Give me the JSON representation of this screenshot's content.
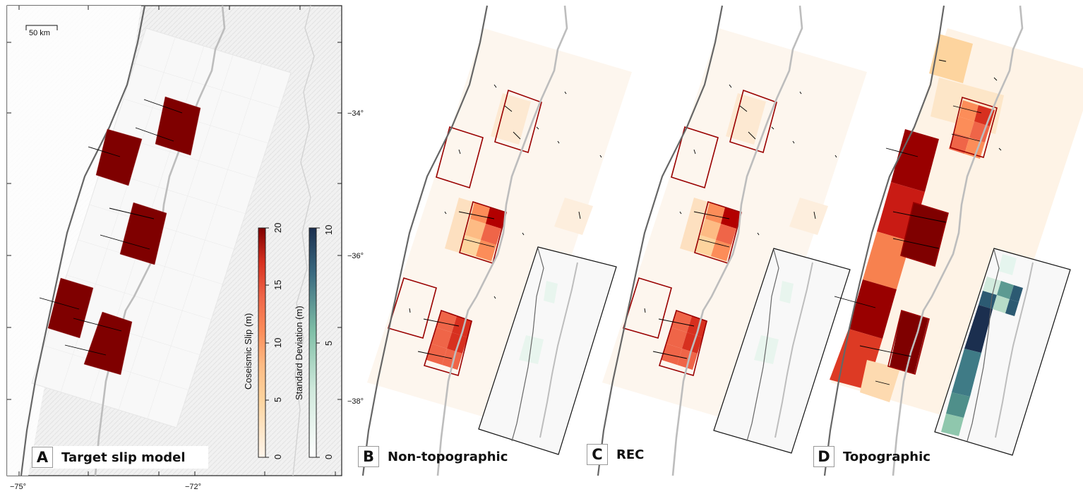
{
  "panels": [
    {
      "letter": "A",
      "title": "Target slip model"
    },
    {
      "letter": "B",
      "title": "Non-topographic"
    },
    {
      "letter": "C",
      "title": "REC"
    },
    {
      "letter": "D",
      "title": "Topographic"
    }
  ],
  "scale_bar": "50 km",
  "axes": {
    "x_ticks": [
      "−75°",
      "−72°"
    ],
    "y_ticks": [
      "−34°",
      "−36°",
      "−38°"
    ]
  },
  "colorbars": [
    {
      "label": "Coseismic Slip (m)",
      "ticks": [
        "0",
        "5",
        "10",
        "15",
        "20"
      ],
      "range": [
        0,
        20
      ],
      "colors": [
        "#fff5eb",
        "#fdd49e",
        "#fdbb84",
        "#fc8d59",
        "#ef6548",
        "#d7301f",
        "#990000",
        "#7f0000"
      ]
    },
    {
      "label": "Standard Deviation (m)",
      "ticks": [
        "0",
        "5",
        "10"
      ],
      "range": [
        0,
        10
      ],
      "colors": [
        "#ffffff",
        "#e5f5ee",
        "#b7dcc8",
        "#7fbfa6",
        "#4a8a8a",
        "#2c5a72",
        "#1b2f4f"
      ]
    }
  ],
  "chart_data": {
    "type": "heatmap",
    "description_kind": "fault slip map panels",
    "x_axis": {
      "ticks": [
        "−75°",
        "−72°"
      ]
    },
    "y_axis": {
      "ticks": [
        "−34°",
        "−36°",
        "−38°"
      ]
    },
    "panels": [
      {
        "id": "A",
        "title": "Target slip model",
        "target_patch_slip_m": [
          20,
          20,
          20,
          20,
          20
        ],
        "background_slip_m": 0
      },
      {
        "id": "B",
        "title": "Non-topographic",
        "patch_slip_m": [
          [
            8,
            12,
            18,
            20
          ],
          [
            10,
            14,
            16,
            12
          ],
          [
            14,
            16,
            18,
            20
          ]
        ],
        "std_inset_max_m": 1
      },
      {
        "id": "C",
        "title": "REC",
        "patch_slip_m": [
          [
            8,
            12,
            18,
            20
          ],
          [
            10,
            14,
            16,
            12
          ],
          [
            14,
            16,
            18,
            20
          ]
        ],
        "std_inset_max_m": 1
      },
      {
        "id": "D",
        "title": "Topographic",
        "column_slip_m": [
          20,
          18,
          13,
          20,
          17
        ],
        "upper_patch_slip_m": [
          12,
          18,
          14,
          16
        ],
        "std_inset_max_m": 9
      }
    ]
  }
}
